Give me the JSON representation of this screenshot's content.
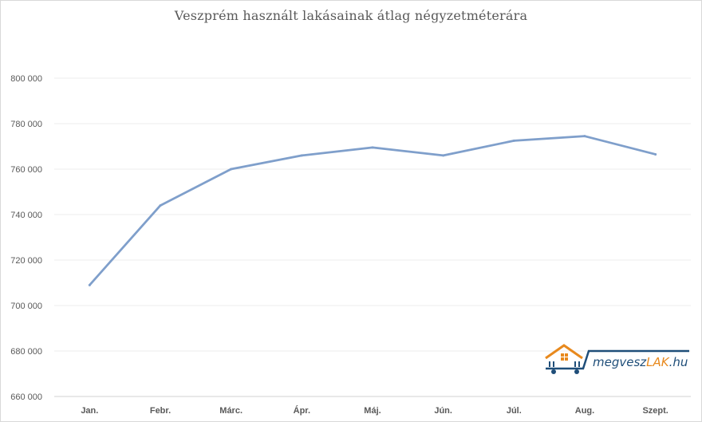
{
  "chart_data": {
    "type": "line",
    "title": "Veszprém használt lakásainak átlag négyzetméterára",
    "categories": [
      "Jan.",
      "Febr.",
      "Márc.",
      "Ápr.",
      "Máj.",
      "Jún.",
      "Júl.",
      "Aug.",
      "Szept."
    ],
    "series": [
      {
        "values": [
          709000,
          744000,
          760000,
          766000,
          769500,
          766000,
          772500,
          774500,
          766500
        ]
      }
    ],
    "ylim": [
      660000,
      800000
    ],
    "yticks": [
      660000,
      680000,
      700000,
      720000,
      740000,
      760000,
      780000,
      800000
    ],
    "ytick_labels": [
      "660 000",
      "680 000",
      "700 000",
      "720 000",
      "740 000",
      "760 000",
      "780 000",
      "800 000"
    ],
    "grid": true,
    "line_color": "#7f9fcb"
  },
  "logo": {
    "text_main": "megvesz",
    "text_accent": "LAK",
    "text_tail": ".hu",
    "color_main": "#1f4e79",
    "color_accent": "#e8891d"
  }
}
